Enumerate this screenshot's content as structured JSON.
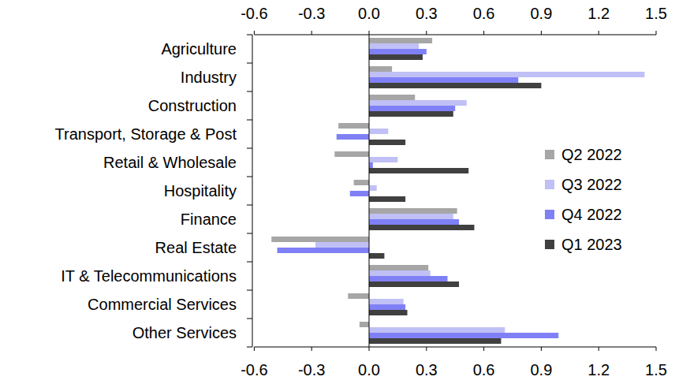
{
  "chart_data": {
    "type": "bar",
    "orientation": "horizontal",
    "legend": "right",
    "grid": false,
    "categories": [
      "Agriculture",
      "Industry",
      "Construction",
      "Transport, Storage & Post",
      "Retail & Wholesale",
      "Hospitality",
      "Finance",
      "Real Estate",
      "IT & Telecommunications",
      "Commercial Services",
      "Other Services"
    ],
    "series": [
      {
        "name": "Q2 2022",
        "color": "#a6a6a6",
        "values": [
          0.33,
          0.12,
          0.24,
          -0.16,
          -0.18,
          -0.08,
          0.46,
          -0.51,
          0.31,
          -0.11,
          -0.05
        ]
      },
      {
        "name": "Q3 2022",
        "color": "#c0c0f6",
        "values": [
          0.26,
          1.44,
          0.51,
          0.1,
          0.15,
          0.04,
          0.44,
          -0.28,
          0.32,
          0.18,
          0.71
        ]
      },
      {
        "name": "Q4 2022",
        "color": "#8080f6",
        "values": [
          0.3,
          0.78,
          0.45,
          -0.17,
          0.02,
          -0.1,
          0.47,
          -0.48,
          0.41,
          0.19,
          0.99
        ]
      },
      {
        "name": "Q1 2023",
        "color": "#404040",
        "values": [
          0.28,
          0.9,
          0.44,
          0.19,
          0.52,
          0.19,
          0.55,
          0.08,
          0.47,
          0.2,
          0.69
        ]
      }
    ],
    "xlim": [
      -0.6,
      1.5
    ],
    "xticks": [
      -0.6,
      -0.3,
      {
        "value": 0,
        "label": "0.0"
      },
      0.3,
      0.6,
      0.9,
      1.2,
      1.5
    ]
  }
}
